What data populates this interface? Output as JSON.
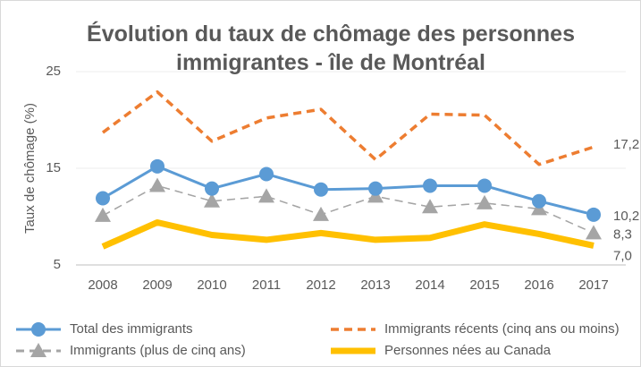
{
  "chart_data": {
    "type": "line",
    "title": "Évolution du taux de chômage des personnes immigrantes - île de Montréal",
    "y_label": "Taux de chômage (%)",
    "categories": [
      "2008",
      "2009",
      "2010",
      "2011",
      "2012",
      "2013",
      "2014",
      "2015",
      "2016",
      "2017"
    ],
    "ylim": [
      5,
      25
    ],
    "yticks": [
      5,
      15,
      25
    ],
    "grid": true,
    "series": [
      {
        "name": "Total des immigrants",
        "color": "#5b9bd5",
        "style": "solid-circle",
        "values": [
          11.9,
          15.2,
          12.9,
          14.4,
          12.8,
          12.9,
          13.2,
          13.2,
          11.6,
          10.2
        ],
        "value_labels": [
          null,
          null,
          null,
          null,
          null,
          null,
          null,
          null,
          null,
          "10,2"
        ]
      },
      {
        "name": "Immigrants récents (cinq ans ou moins)",
        "color": "#ed7d31",
        "style": "dashed",
        "values": [
          18.7,
          22.9,
          17.8,
          20.2,
          21.1,
          15.9,
          20.6,
          20.5,
          15.4,
          17.2
        ],
        "value_labels": [
          null,
          null,
          null,
          null,
          null,
          null,
          null,
          null,
          null,
          "17,2"
        ]
      },
      {
        "name": "Immigrants (plus de cinq ans)",
        "color": "#a5a5a5",
        "style": "dashed-triangle",
        "values": [
          10.1,
          13.2,
          11.6,
          12.1,
          10.2,
          12.1,
          11.0,
          11.4,
          10.8,
          8.3
        ],
        "value_labels": [
          null,
          null,
          null,
          null,
          null,
          null,
          null,
          null,
          null,
          "8,3"
        ]
      },
      {
        "name": "Personnes nées au Canada",
        "color": "#ffc000",
        "style": "thick",
        "values": [
          6.9,
          9.4,
          8.1,
          7.6,
          8.3,
          7.6,
          7.8,
          9.2,
          8.2,
          7.0
        ],
        "value_labels": [
          null,
          null,
          null,
          null,
          null,
          null,
          null,
          null,
          null,
          "7,0"
        ]
      }
    ]
  }
}
